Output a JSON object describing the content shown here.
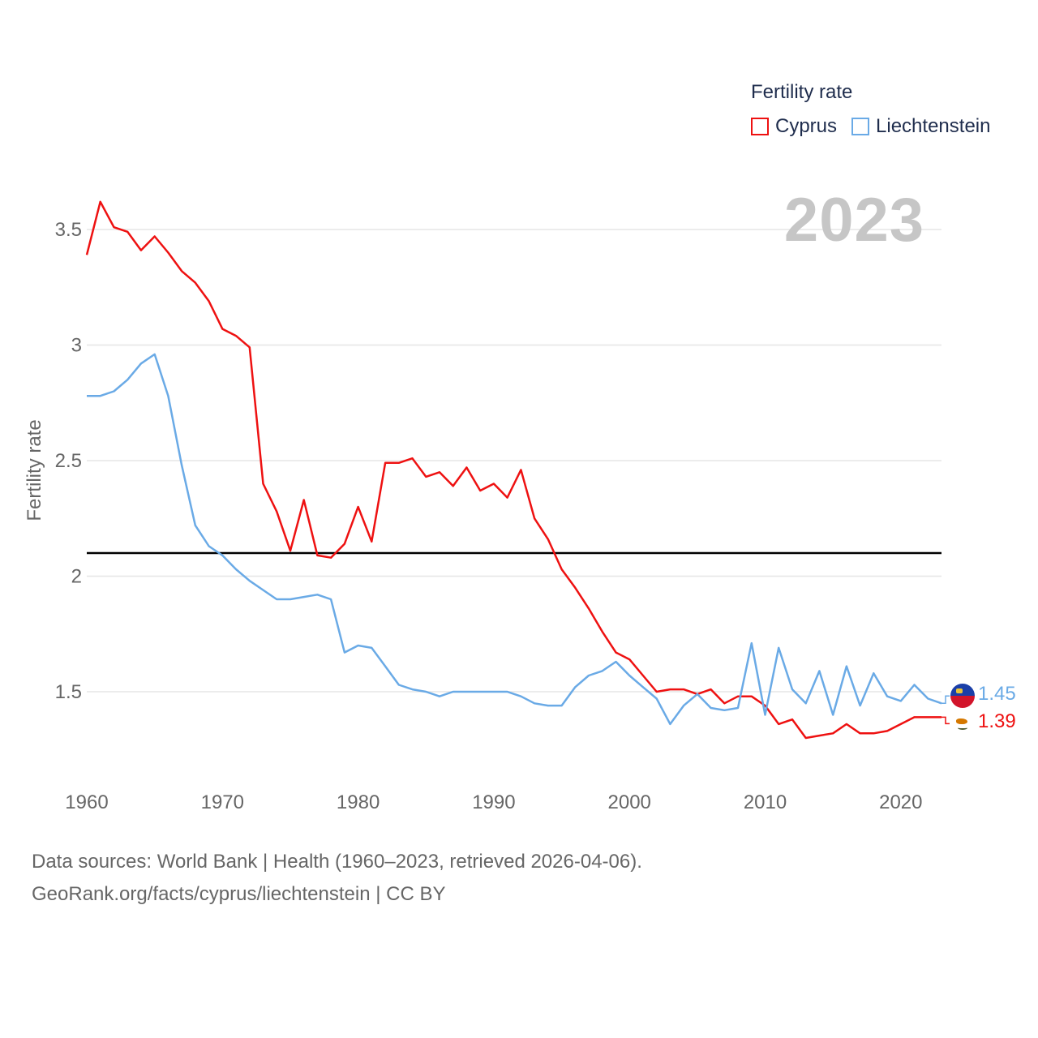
{
  "legend": {
    "title": "Fertility rate",
    "items": [
      {
        "label": "Cyprus",
        "color": "#ee1111"
      },
      {
        "label": "Liechtenstein",
        "color": "#6aaae6"
      }
    ]
  },
  "year_badge": "2023",
  "footer": {
    "line1": "Data sources: World Bank | Health (1960–2023, retrieved 2026-04-06).",
    "line2": "GeoRank.org/facts/cyprus/liechtenstein | CC BY"
  },
  "end_labels": {
    "liechtenstein": "1.45",
    "cyprus": "1.39"
  },
  "icons": {
    "liechtenstein_flag": "liechtenstein-flag-icon",
    "cyprus_flag": "cyprus-flag-icon"
  },
  "chart_data": {
    "type": "line",
    "ylabel": "Fertility rate",
    "xlabel": "",
    "xlim": [
      1960,
      2023
    ],
    "ylim": [
      1.2,
      3.7
    ],
    "x_ticks": [
      1960,
      1970,
      1980,
      1990,
      2000,
      2010,
      2020
    ],
    "y_ticks": [
      1.5,
      2,
      2.5,
      3,
      3.5
    ],
    "y_tick_labels": [
      "1.5",
      "2",
      "2.5",
      "3",
      "3.5"
    ],
    "reference_line": {
      "value": 2.1,
      "color": "#000000"
    },
    "grid": true,
    "legend_position": "top-right",
    "x": [
      1960,
      1961,
      1962,
      1963,
      1964,
      1965,
      1966,
      1967,
      1968,
      1969,
      1970,
      1971,
      1972,
      1973,
      1974,
      1975,
      1976,
      1977,
      1978,
      1979,
      1980,
      1981,
      1982,
      1983,
      1984,
      1985,
      1986,
      1987,
      1988,
      1989,
      1990,
      1991,
      1992,
      1993,
      1994,
      1995,
      1996,
      1997,
      1998,
      1999,
      2000,
      2001,
      2002,
      2003,
      2004,
      2005,
      2006,
      2007,
      2008,
      2009,
      2010,
      2011,
      2012,
      2013,
      2014,
      2015,
      2016,
      2017,
      2018,
      2019,
      2020,
      2021,
      2022,
      2023
    ],
    "series": [
      {
        "name": "Cyprus",
        "color": "#ee1111",
        "values": [
          3.39,
          3.62,
          3.51,
          3.49,
          3.41,
          3.47,
          3.4,
          3.32,
          3.27,
          3.19,
          3.07,
          3.04,
          2.99,
          2.4,
          2.28,
          2.11,
          2.33,
          2.09,
          2.08,
          2.14,
          2.3,
          2.15,
          2.49,
          2.49,
          2.51,
          2.43,
          2.45,
          2.39,
          2.47,
          2.37,
          2.4,
          2.34,
          2.46,
          2.25,
          2.16,
          2.03,
          1.95,
          1.86,
          1.76,
          1.67,
          1.64,
          1.57,
          1.5,
          1.51,
          1.51,
          1.49,
          1.51,
          1.45,
          1.48,
          1.48,
          1.44,
          1.36,
          1.38,
          1.3,
          1.31,
          1.32,
          1.36,
          1.32,
          1.32,
          1.33,
          1.36,
          1.39,
          1.39,
          1.39
        ]
      },
      {
        "name": "Liechtenstein",
        "color": "#6aaae6",
        "values": [
          2.78,
          2.78,
          2.8,
          2.85,
          2.92,
          2.96,
          2.78,
          2.48,
          2.22,
          2.13,
          2.09,
          2.03,
          1.98,
          1.94,
          1.9,
          1.9,
          1.91,
          1.92,
          1.9,
          1.67,
          1.7,
          1.69,
          1.61,
          1.53,
          1.51,
          1.5,
          1.48,
          1.5,
          1.5,
          1.5,
          1.5,
          1.5,
          1.48,
          1.45,
          1.44,
          1.44,
          1.52,
          1.57,
          1.59,
          1.63,
          1.57,
          1.52,
          1.47,
          1.36,
          1.44,
          1.49,
          1.43,
          1.42,
          1.43,
          1.71,
          1.4,
          1.69,
          1.51,
          1.45,
          1.59,
          1.4,
          1.61,
          1.44,
          1.58,
          1.48,
          1.46,
          1.53,
          1.47,
          1.45
        ]
      }
    ]
  }
}
